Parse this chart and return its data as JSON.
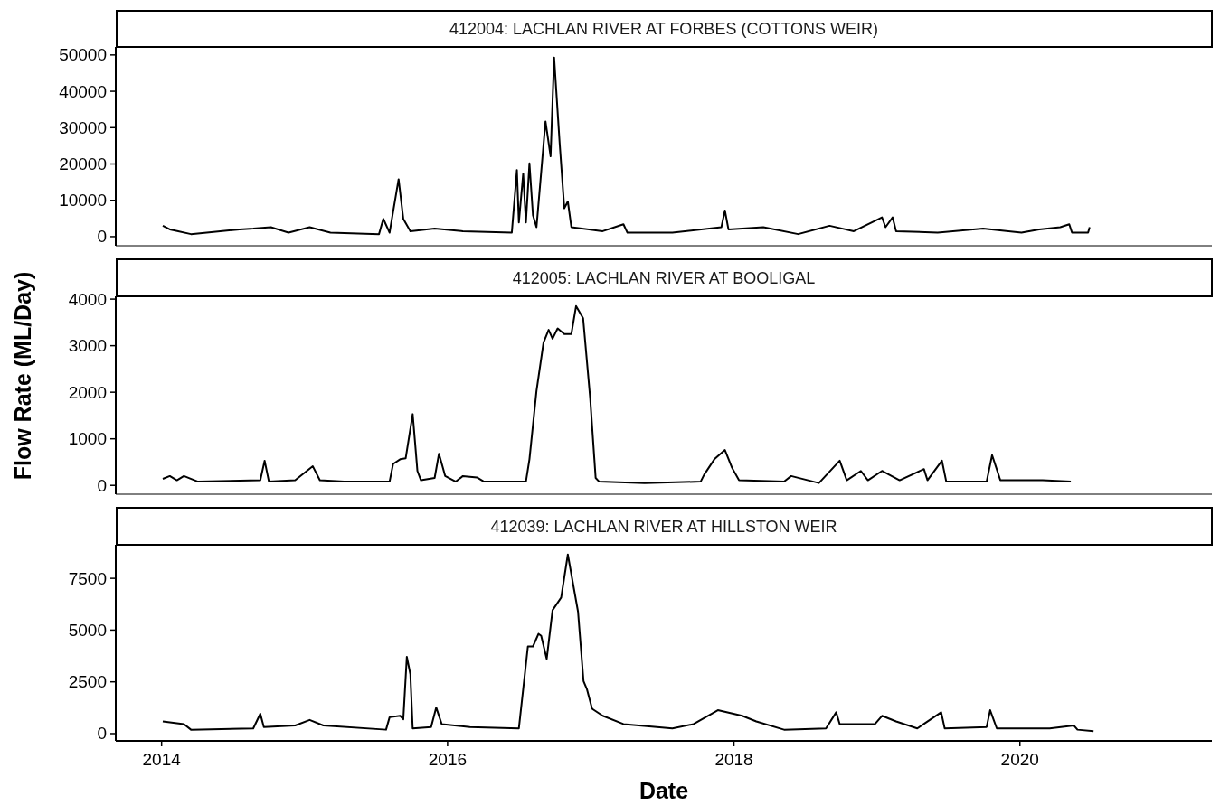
{
  "chart_data": [
    {
      "type": "line",
      "title": "412004: LACHLAN RIVER AT FORBES (COTTONS WEIR)",
      "tick_labels": "y",
      "grid": false,
      "xlim": [
        "2013-09-06",
        "2021-05-05"
      ],
      "xticks": [
        "2014",
        "2016",
        "2018",
        "2020"
      ],
      "ylim": [
        -2500,
        52200
      ],
      "yticks": [
        0,
        10000,
        20000,
        30000,
        40000,
        50000
      ],
      "series": [
        {
          "color": "#000000",
          "x": [
            "2014-01-04",
            "2014-01-22",
            "2014-03-17",
            "2014-07-19",
            "2014-08-23",
            "2014-10-07",
            "2014-11-21",
            "2015-01-14",
            "2015-03-08",
            "2015-07-10",
            "2015-07-21",
            "2015-08-06",
            "2015-08-29",
            "2015-09-10",
            "2015-09-28",
            "2015-11-29",
            "2016-02-09",
            "2016-06-13",
            "2016-06-26",
            "2016-07-01",
            "2016-07-12",
            "2016-07-19",
            "2016-07-28",
            "2016-08-06",
            "2016-08-15",
            "2016-09-07",
            "2016-09-20",
            "2016-09-29",
            "2016-10-13",
            "2016-10-25",
            "2016-11-03",
            "2016-11-12",
            "2017-01-31",
            "2017-03-25",
            "2017-04-04",
            "2017-07-28",
            "2017-11-30",
            "2017-12-09",
            "2017-12-18",
            "2018-03-17",
            "2018-06-14",
            "2018-09-02",
            "2018-11-03",
            "2019-01-14",
            "2019-01-23",
            "2019-02-10",
            "2019-02-19",
            "2019-06-05",
            "2019-09-29",
            "2020-01-05",
            "2020-02-19",
            "2020-04-13",
            "2020-05-06",
            "2020-05-13",
            "2020-06-23",
            "2020-06-27"
          ],
          "values": [
            3000,
            2000,
            700,
            2000,
            2200,
            2600,
            1100,
            2600,
            1100,
            700,
            4900,
            1100,
            15800,
            4900,
            1500,
            2200,
            1500,
            1100,
            18300,
            3900,
            17300,
            3900,
            20200,
            5900,
            2600,
            31700,
            22100,
            49300,
            25900,
            7800,
            9700,
            2600,
            1500,
            3400,
            1100,
            1100,
            2600,
            7200,
            2000,
            2600,
            700,
            3000,
            1500,
            5300,
            2600,
            5300,
            1500,
            1100,
            2200,
            1100,
            2000,
            2600,
            3400,
            1100,
            1100,
            2600
          ]
        }
      ]
    },
    {
      "type": "line",
      "title": "412005: LACHLAN RIVER AT BOOLIGAL",
      "ylabel": "Flow Rate (ML/Day)",
      "tick_labels": "y",
      "grid": false,
      "xlim": [
        "2013-09-06",
        "2021-05-05"
      ],
      "xticks": [
        "2014",
        "2016",
        "2018",
        "2020"
      ],
      "ylim": [
        -190,
        4060
      ],
      "yticks": [
        0,
        1000,
        2000,
        3000,
        4000
      ],
      "series": [
        {
          "color": "#000000",
          "x": [
            "2014-01-04",
            "2014-01-22",
            "2014-02-09",
            "2014-02-27",
            "2014-04-04",
            "2014-09-10",
            "2014-09-21",
            "2014-10-02",
            "2014-12-08",
            "2015-01-22",
            "2015-02-09",
            "2015-04-12",
            "2015-08-06",
            "2015-08-15",
            "2015-09-02",
            "2015-09-16",
            "2015-10-04",
            "2015-10-16",
            "2015-10-25",
            "2015-11-29",
            "2015-12-10",
            "2015-12-26",
            "2016-01-22",
            "2016-02-09",
            "2016-03-16",
            "2016-04-03",
            "2016-07-19",
            "2016-07-28",
            "2016-08-15",
            "2016-09-02",
            "2016-09-15",
            "2016-09-25",
            "2016-10-08",
            "2016-10-25",
            "2016-11-12",
            "2016-11-24",
            "2016-12-12",
            "2016-12-30",
            "2017-01-13",
            "2017-01-22",
            "2017-05-18",
            "2017-10-08",
            "2017-10-17",
            "2017-11-12",
            "2017-12-09",
            "2017-12-27",
            "2018-01-14",
            "2018-05-09",
            "2018-05-27",
            "2018-08-06",
            "2018-09-28",
            "2018-10-16",
            "2018-11-21",
            "2018-12-09",
            "2019-01-14",
            "2019-02-01",
            "2019-02-28",
            "2019-05-01",
            "2019-05-10",
            "2019-06-16",
            "2019-06-27",
            "2019-10-08",
            "2019-10-22",
            "2019-11-12",
            "2020-02-28",
            "2020-05-10"
          ],
          "values": [
            140,
            200,
            110,
            200,
            80,
            110,
            530,
            80,
            110,
            410,
            110,
            80,
            80,
            460,
            560,
            580,
            1530,
            310,
            110,
            160,
            680,
            200,
            80,
            200,
            170,
            80,
            80,
            560,
            2030,
            3070,
            3340,
            3150,
            3370,
            3250,
            3250,
            3850,
            3590,
            1880,
            160,
            80,
            50,
            80,
            230,
            560,
            760,
            380,
            110,
            80,
            200,
            50,
            530,
            110,
            310,
            110,
            310,
            230,
            110,
            350,
            110,
            530,
            80,
            80,
            650,
            110,
            110,
            80
          ]
        }
      ]
    },
    {
      "type": "line",
      "title": "412039: LACHLAN RIVER AT HILLSTON WEIR",
      "xlabel": "Date",
      "grid": false,
      "xlim": [
        "2013-09-06",
        "2021-05-05"
      ],
      "xticks": [
        "2014",
        "2016",
        "2018",
        "2020"
      ],
      "ylim": [
        -350,
        9120
      ],
      "yticks": [
        0,
        2500,
        5000,
        7500
      ],
      "series": [
        {
          "color": "#000000",
          "x": [
            "2014-01-04",
            "2014-02-27",
            "2014-03-17",
            "2014-08-23",
            "2014-09-10",
            "2014-09-19",
            "2014-12-08",
            "2015-01-14",
            "2015-02-18",
            "2015-07-28",
            "2015-08-06",
            "2015-09-02",
            "2015-09-10",
            "2015-09-19",
            "2015-09-28",
            "2015-10-04",
            "2015-11-20",
            "2015-12-03",
            "2015-12-17",
            "2016-02-27",
            "2016-07-01",
            "2016-07-24",
            "2016-08-06",
            "2016-08-20",
            "2016-08-27",
            "2016-09-10",
            "2016-09-25",
            "2016-10-17",
            "2016-11-03",
            "2016-11-29",
            "2016-12-13",
            "2016-12-22",
            "2017-01-04",
            "2017-01-31",
            "2017-03-25",
            "2017-07-28",
            "2017-09-20",
            "2017-11-21",
            "2018-01-22",
            "2018-02-27",
            "2018-05-09",
            "2018-08-24",
            "2018-09-19",
            "2018-09-28",
            "2018-12-27",
            "2019-01-14",
            "2019-02-19",
            "2019-04-14",
            "2019-06-14",
            "2019-06-23",
            "2019-10-08",
            "2019-10-17",
            "2019-11-03",
            "2020-03-17",
            "2020-05-18",
            "2020-05-27",
            "2020-07-07"
          ],
          "values": [
            590,
            460,
            190,
            250,
            960,
            320,
            390,
            660,
            390,
            190,
            790,
            860,
            690,
            3710,
            2870,
            250,
            320,
            1260,
            460,
            320,
            250,
            4210,
            4210,
            4820,
            4720,
            3610,
            5960,
            6570,
            8650,
            5890,
            2540,
            2130,
            1200,
            860,
            460,
            250,
            460,
            1130,
            860,
            590,
            190,
            250,
            1030,
            460,
            460,
            860,
            590,
            250,
            1030,
            250,
            320,
            1130,
            250,
            250,
            390,
            190,
            120
          ]
        }
      ]
    }
  ]
}
